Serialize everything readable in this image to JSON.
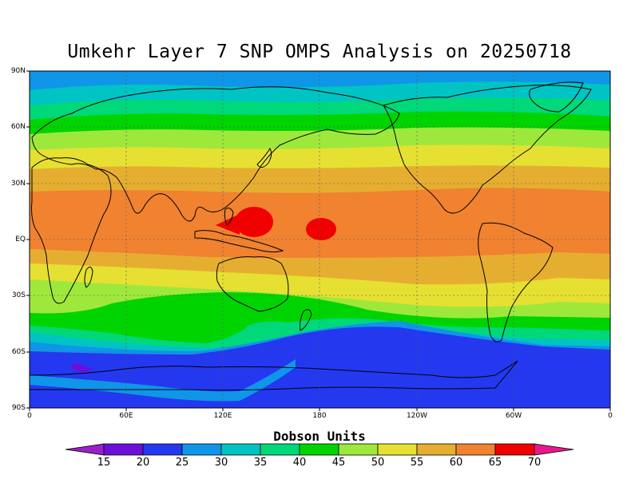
{
  "title": "Umkehr Layer 7 SNP OMPS Analysis on 20250718",
  "colorbar": {
    "title": "Dobson Units",
    "labels": [
      "15",
      "20",
      "25",
      "30",
      "35",
      "40",
      "45",
      "50",
      "55",
      "60",
      "65",
      "70"
    ],
    "colors": [
      "#9b20c8",
      "#6a10d8",
      "#2438f0",
      "#0f96e8",
      "#00c4c4",
      "#00d87a",
      "#00d400",
      "#9ee83c",
      "#e6e032",
      "#e6ae30",
      "#f08230",
      "#f00000",
      "#e8188a"
    ]
  },
  "map": {
    "y_tick_labels": [
      "90N",
      "60N",
      "30N",
      "EQ",
      "30S",
      "60S",
      "90S"
    ],
    "x_tick_labels": [
      "0",
      "60E",
      "120E",
      "180",
      "120W",
      "60W",
      "0"
    ]
  },
  "chart_data": {
    "type": "heatmap",
    "title": "Umkehr Layer 7 SNP OMPS Analysis on 20250718",
    "units": "Dobson Units",
    "x_range_deg_east": [
      0,
      360
    ],
    "y_range_deg": [
      -90,
      90
    ],
    "contour_levels": [
      15,
      20,
      25,
      30,
      35,
      40,
      45,
      50,
      55,
      60,
      65,
      70
    ],
    "zonal_bands": [
      {
        "lat_from": 90,
        "lat_to": 80,
        "value_range": [
          25,
          30
        ]
      },
      {
        "lat_from": 80,
        "lat_to": 72,
        "value_range": [
          30,
          35
        ]
      },
      {
        "lat_from": 72,
        "lat_to": 65,
        "value_range": [
          35,
          40
        ]
      },
      {
        "lat_from": 65,
        "lat_to": 58,
        "value_range": [
          40,
          45
        ]
      },
      {
        "lat_from": 58,
        "lat_to": 50,
        "value_range": [
          45,
          50
        ]
      },
      {
        "lat_from": 50,
        "lat_to": 40,
        "value_range": [
          50,
          55
        ]
      },
      {
        "lat_from": 40,
        "lat_to": 28,
        "value_range": [
          55,
          60
        ]
      },
      {
        "lat_from": 28,
        "lat_to": -8,
        "value_range": [
          60,
          65
        ]
      },
      {
        "lat_from": -8,
        "lat_to": -22,
        "value_range": [
          55,
          60
        ]
      },
      {
        "lat_from": -22,
        "lat_to": -32,
        "value_range": [
          50,
          55
        ]
      },
      {
        "lat_from": -32,
        "lat_to": -40,
        "value_range": [
          45,
          50
        ]
      },
      {
        "lat_from": -40,
        "lat_to": -48,
        "value_range": [
          40,
          45
        ]
      },
      {
        "lat_from": -48,
        "lat_to": -58,
        "value_range": [
          35,
          40
        ]
      },
      {
        "lat_from": -58,
        "lat_to": -90,
        "value_range": [
          20,
          25
        ]
      }
    ],
    "maxima": [
      {
        "lon": 140,
        "lat": 10,
        "value_range": [
          65,
          70
        ]
      },
      {
        "lon": 180,
        "lat": 5,
        "value_range": [
          65,
          70
        ]
      }
    ],
    "minima": [
      {
        "lon": 30,
        "lat": -68,
        "value_range": [
          15,
          20
        ]
      }
    ]
  }
}
